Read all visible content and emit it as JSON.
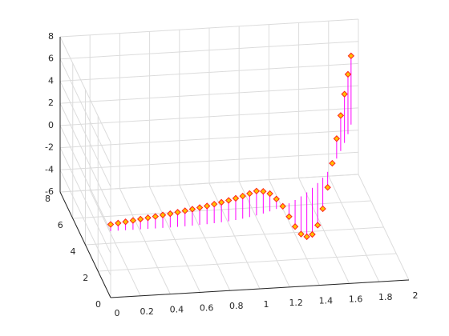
{
  "chart_data": {
    "type": "stem3",
    "x": [
      0,
      0.05,
      0.1,
      0.15,
      0.2,
      0.25,
      0.3,
      0.35,
      0.4,
      0.45,
      0.5,
      0.55,
      0.6,
      0.65,
      0.7,
      0.75,
      0.8,
      0.85,
      0.9,
      0.95,
      1.0,
      1.05,
      1.1,
      1.15,
      1.2,
      1.25,
      1.3,
      1.35,
      1.4,
      1.45,
      1.5,
      1.55,
      1.6,
      1.65,
      1.7,
      1.75,
      1.8,
      1.85,
      1.9
    ],
    "y": [
      0,
      0,
      0,
      0,
      0,
      0,
      0,
      0.01,
      0.01,
      0.02,
      0.03,
      0.05,
      0.07,
      0.09,
      0.13,
      0.17,
      0.21,
      0.27,
      0.34,
      0.43,
      0.52,
      0.63,
      0.76,
      0.91,
      1.08,
      1.27,
      1.49,
      1.73,
      2.0,
      2.31,
      2.64,
      3.01,
      3.42,
      3.87,
      4.36,
      4.9,
      5.48,
      6.11,
      6.8
    ],
    "z": [
      0.6,
      0.68,
      0.76,
      0.84,
      0.92,
      1.0,
      1.08,
      1.16,
      1.24,
      1.32,
      1.4,
      1.48,
      1.56,
      1.64,
      1.72,
      1.8,
      1.88,
      1.96,
      2.04,
      2.12,
      2.2,
      2.0,
      1.6,
      0.9,
      0,
      -1.2,
      -2.4,
      -3.4,
      -4.0,
      -4.2,
      -3.8,
      -2.8,
      -1.4,
      0.2,
      1.8,
      3.2,
      4.4,
      5.4,
      6.2
    ],
    "xlim": [
      0,
      2
    ],
    "ylim": [
      0,
      8
    ],
    "zlim": [
      -6,
      8
    ],
    "xticks": [
      0,
      0.2,
      0.4,
      0.6,
      0.8,
      1,
      1.2,
      1.4,
      1.6,
      1.8,
      2
    ],
    "yticks": [
      0,
      2,
      4,
      6,
      8
    ],
    "zticks": [
      -6,
      -4,
      -2,
      0,
      2,
      4,
      6,
      8
    ],
    "grid": true,
    "stem_color": "#ff00ff",
    "marker_color": "#ffc000",
    "marker_edge_color": "#ff2020"
  }
}
